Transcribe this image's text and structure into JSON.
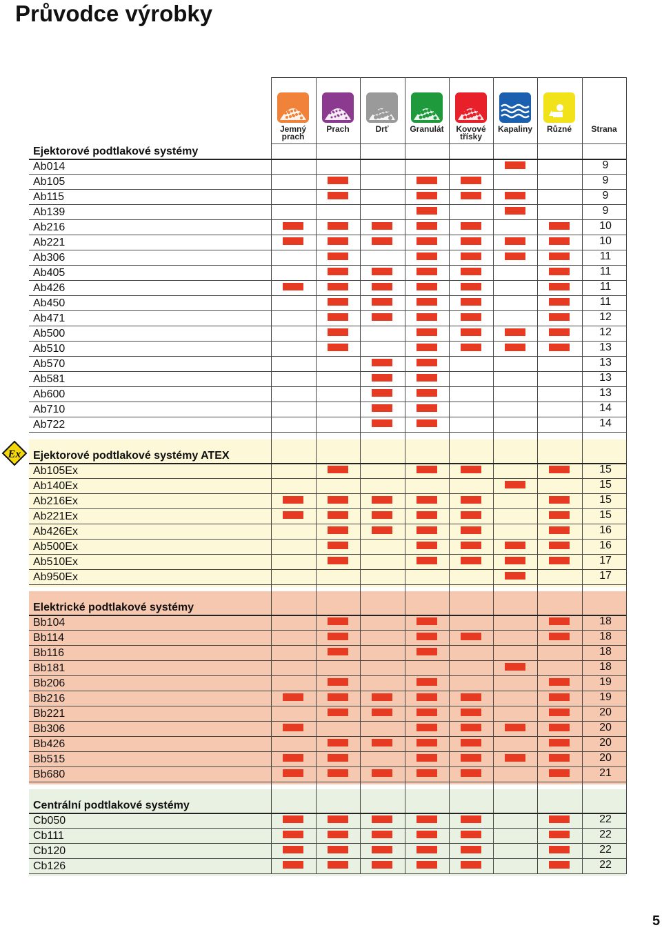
{
  "title": "Průvodce výrobky",
  "page_number": "5",
  "colors": {
    "mark": "#e63a22",
    "atex_bg": "#fdf8d8",
    "elec_bg": "#f6c8b0",
    "cent_bg": "#e9f1e2"
  },
  "columns": [
    {
      "line1": "Jemný",
      "line2": "prach",
      "icon": "fine-dust-icon",
      "color": "#f0823a"
    },
    {
      "line1": "Prach",
      "line2": "",
      "icon": "dust-icon",
      "color": "#8c3a90"
    },
    {
      "line1": "Drť",
      "line2": "",
      "icon": "grit-icon",
      "color": "#9a9a9a"
    },
    {
      "line1": "Granulát",
      "line2": "",
      "icon": "granulate-icon",
      "color": "#1e9a3c"
    },
    {
      "line1": "Kovové",
      "line2": "třísky",
      "icon": "metal-chips-icon",
      "color": "#e8202a"
    },
    {
      "line1": "Kapaliny",
      "line2": "",
      "icon": "liquids-icon",
      "color": "#1a5fb0"
    },
    {
      "line1": "Různé",
      "line2": "",
      "icon": "various-icon",
      "color": "#f2e21a"
    }
  ],
  "page_column_header": "Strana",
  "ex_icon_label": "Ex",
  "sections": [
    {
      "title": "Ejektorové podtlakové systémy",
      "rows": [
        {
          "name": "Ab014",
          "marks": [
            0,
            0,
            0,
            0,
            0,
            1,
            0
          ],
          "page": "9"
        },
        {
          "name": "Ab105",
          "marks": [
            0,
            1,
            0,
            1,
            1,
            0,
            0
          ],
          "page": "9"
        },
        {
          "name": "Ab115",
          "marks": [
            0,
            1,
            0,
            1,
            1,
            1,
            0
          ],
          "page": "9"
        },
        {
          "name": "Ab139",
          "marks": [
            0,
            0,
            0,
            1,
            0,
            1,
            0
          ],
          "page": "9"
        },
        {
          "name": "Ab216",
          "marks": [
            1,
            1,
            1,
            1,
            1,
            0,
            1
          ],
          "page": "10"
        },
        {
          "name": "Ab221",
          "marks": [
            1,
            1,
            1,
            1,
            1,
            1,
            1
          ],
          "page": "10"
        },
        {
          "name": "Ab306",
          "marks": [
            0,
            1,
            0,
            1,
            1,
            1,
            1
          ],
          "page": "11"
        },
        {
          "name": "Ab405",
          "marks": [
            0,
            1,
            1,
            1,
            1,
            0,
            1
          ],
          "page": "11"
        },
        {
          "name": "Ab426",
          "marks": [
            1,
            1,
            1,
            1,
            1,
            0,
            1
          ],
          "page": "11"
        },
        {
          "name": "Ab450",
          "marks": [
            0,
            1,
            1,
            1,
            1,
            0,
            1
          ],
          "page": "11"
        },
        {
          "name": "Ab471",
          "marks": [
            0,
            1,
            1,
            1,
            1,
            0,
            1
          ],
          "page": "12"
        },
        {
          "name": "Ab500",
          "marks": [
            0,
            1,
            0,
            1,
            1,
            1,
            1
          ],
          "page": "12"
        },
        {
          "name": "Ab510",
          "marks": [
            0,
            1,
            0,
            1,
            1,
            1,
            1
          ],
          "page": "13"
        },
        {
          "name": "Ab570",
          "marks": [
            0,
            0,
            1,
            1,
            0,
            0,
            0
          ],
          "page": "13"
        },
        {
          "name": "Ab581",
          "marks": [
            0,
            0,
            1,
            1,
            0,
            0,
            0
          ],
          "page": "13"
        },
        {
          "name": "Ab600",
          "marks": [
            0,
            0,
            1,
            1,
            0,
            0,
            0
          ],
          "page": "13"
        },
        {
          "name": "Ab710",
          "marks": [
            0,
            0,
            1,
            1,
            0,
            0,
            0
          ],
          "page": "14"
        },
        {
          "name": "Ab722",
          "marks": [
            0,
            0,
            1,
            1,
            0,
            0,
            0
          ],
          "page": "14"
        }
      ]
    },
    {
      "title": "Ejektorové podtlakové systémy ATEX",
      "rows": [
        {
          "name": "Ab105Ex",
          "marks": [
            0,
            1,
            0,
            1,
            1,
            0,
            1
          ],
          "page": "15"
        },
        {
          "name": "Ab140Ex",
          "marks": [
            0,
            0,
            0,
            0,
            0,
            1,
            0
          ],
          "page": "15"
        },
        {
          "name": "Ab216Ex",
          "marks": [
            1,
            1,
            1,
            1,
            1,
            0,
            1
          ],
          "page": "15"
        },
        {
          "name": "Ab221Ex",
          "marks": [
            1,
            1,
            1,
            1,
            1,
            0,
            1
          ],
          "page": "15"
        },
        {
          "name": "Ab426Ex",
          "marks": [
            0,
            1,
            1,
            1,
            1,
            0,
            1
          ],
          "page": "16"
        },
        {
          "name": "Ab500Ex",
          "marks": [
            0,
            1,
            0,
            1,
            1,
            1,
            1
          ],
          "page": "16"
        },
        {
          "name": "Ab510Ex",
          "marks": [
            0,
            1,
            0,
            1,
            1,
            1,
            1
          ],
          "page": "17"
        },
        {
          "name": "Ab950Ex",
          "marks": [
            0,
            0,
            0,
            0,
            0,
            1,
            0
          ],
          "page": "17"
        }
      ]
    },
    {
      "title": "Elektrické podtlakové systémy",
      "rows": [
        {
          "name": "Bb104",
          "marks": [
            0,
            1,
            0,
            1,
            0,
            0,
            1
          ],
          "page": "18"
        },
        {
          "name": "Bb114",
          "marks": [
            0,
            1,
            0,
            1,
            1,
            0,
            1
          ],
          "page": "18"
        },
        {
          "name": "Bb116",
          "marks": [
            0,
            1,
            0,
            1,
            0,
            0,
            0
          ],
          "page": "18"
        },
        {
          "name": "Bb181",
          "marks": [
            0,
            0,
            0,
            0,
            0,
            1,
            0
          ],
          "page": "18"
        },
        {
          "name": "Bb206",
          "marks": [
            0,
            1,
            0,
            1,
            0,
            0,
            1
          ],
          "page": "19"
        },
        {
          "name": "Bb216",
          "marks": [
            1,
            1,
            1,
            1,
            1,
            0,
            1
          ],
          "page": "19"
        },
        {
          "name": "Bb221",
          "marks": [
            0,
            1,
            1,
            1,
            1,
            0,
            1
          ],
          "page": "20"
        },
        {
          "name": "Bb306",
          "marks": [
            1,
            0,
            0,
            1,
            1,
            1,
            1
          ],
          "page": "20"
        },
        {
          "name": "Bb426",
          "marks": [
            0,
            1,
            1,
            1,
            1,
            0,
            1
          ],
          "page": "20"
        },
        {
          "name": "Bb515",
          "marks": [
            1,
            1,
            0,
            1,
            1,
            1,
            1
          ],
          "page": "20"
        },
        {
          "name": "Bb680",
          "marks": [
            1,
            1,
            1,
            1,
            1,
            0,
            1
          ],
          "page": "21"
        }
      ]
    },
    {
      "title": "Centrální podtlakové systémy",
      "rows": [
        {
          "name": "Cb050",
          "marks": [
            1,
            1,
            1,
            1,
            1,
            0,
            1
          ],
          "page": "22"
        },
        {
          "name": "Cb111",
          "marks": [
            1,
            1,
            1,
            1,
            1,
            0,
            1
          ],
          "page": "22"
        },
        {
          "name": "Cb120",
          "marks": [
            1,
            1,
            1,
            1,
            1,
            0,
            1
          ],
          "page": "22"
        },
        {
          "name": "Cb126",
          "marks": [
            1,
            1,
            1,
            1,
            1,
            0,
            1
          ],
          "page": "22"
        }
      ]
    }
  ]
}
